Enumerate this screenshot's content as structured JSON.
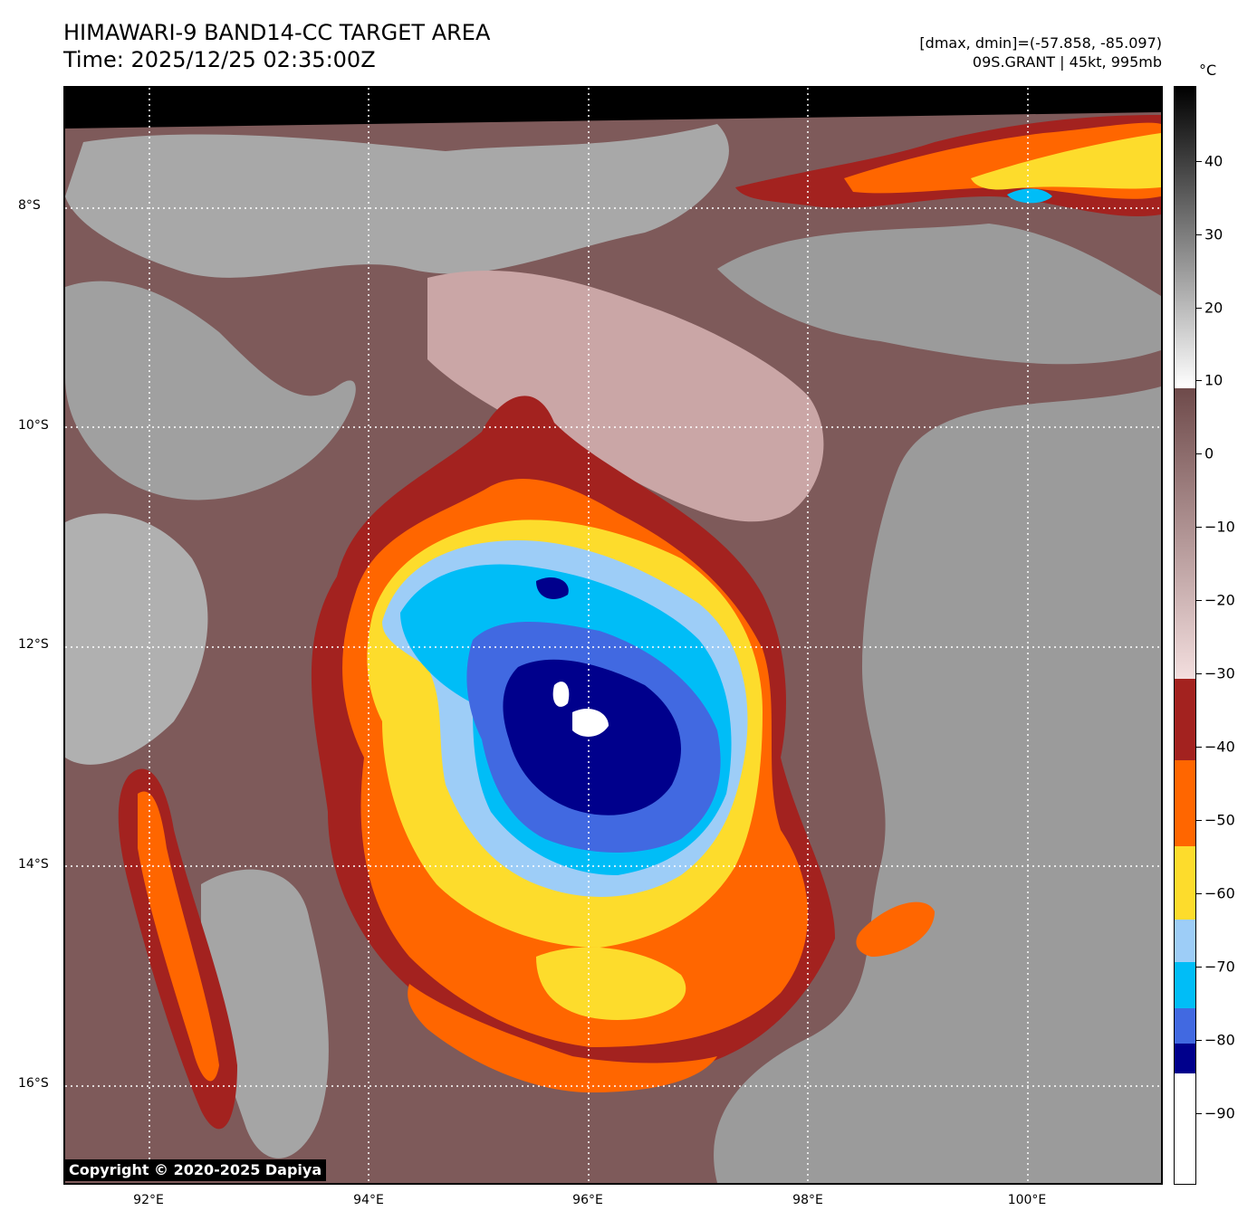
{
  "header": {
    "title": "HIMAWARI-9 BAND14-CC TARGET AREA",
    "time": "Time: 2025/12/25 02:35:00Z",
    "dminmax": "[dmax, dmin]=(-57.858, -85.097)",
    "storm": "09S.GRANT | 45kt, 995mb"
  },
  "map": {
    "latitude_labels": [
      "8°S",
      "10°S",
      "12°S",
      "14°S",
      "16°S"
    ],
    "longitude_labels": [
      "92°E",
      "94°E",
      "96°E",
      "98°E",
      "100°E"
    ],
    "copyright": "Copyright © 2020-2025 Dapiya"
  },
  "colorbar": {
    "unit": "°C",
    "tick_labels": [
      "40",
      "30",
      "20",
      "10",
      "0",
      "−10",
      "−20",
      "−30",
      "−40",
      "−50",
      "−60",
      "−70",
      "−80",
      "−90"
    ],
    "range": [
      -100,
      50
    ],
    "colors": {
      "warm_top": "#000000",
      "gray_10": "#ffffff",
      "brown_0": "#7a5454",
      "pink_neg30": "#f3dede",
      "dark_red": "#a3221f",
      "orange": "#ff6600",
      "yellow": "#fddc2c",
      "light_blue": "#9dcdf7",
      "cyan": "#00bdf7",
      "royal_blue": "#4169e1",
      "navy": "#00008c",
      "white": "#ffffff"
    }
  }
}
